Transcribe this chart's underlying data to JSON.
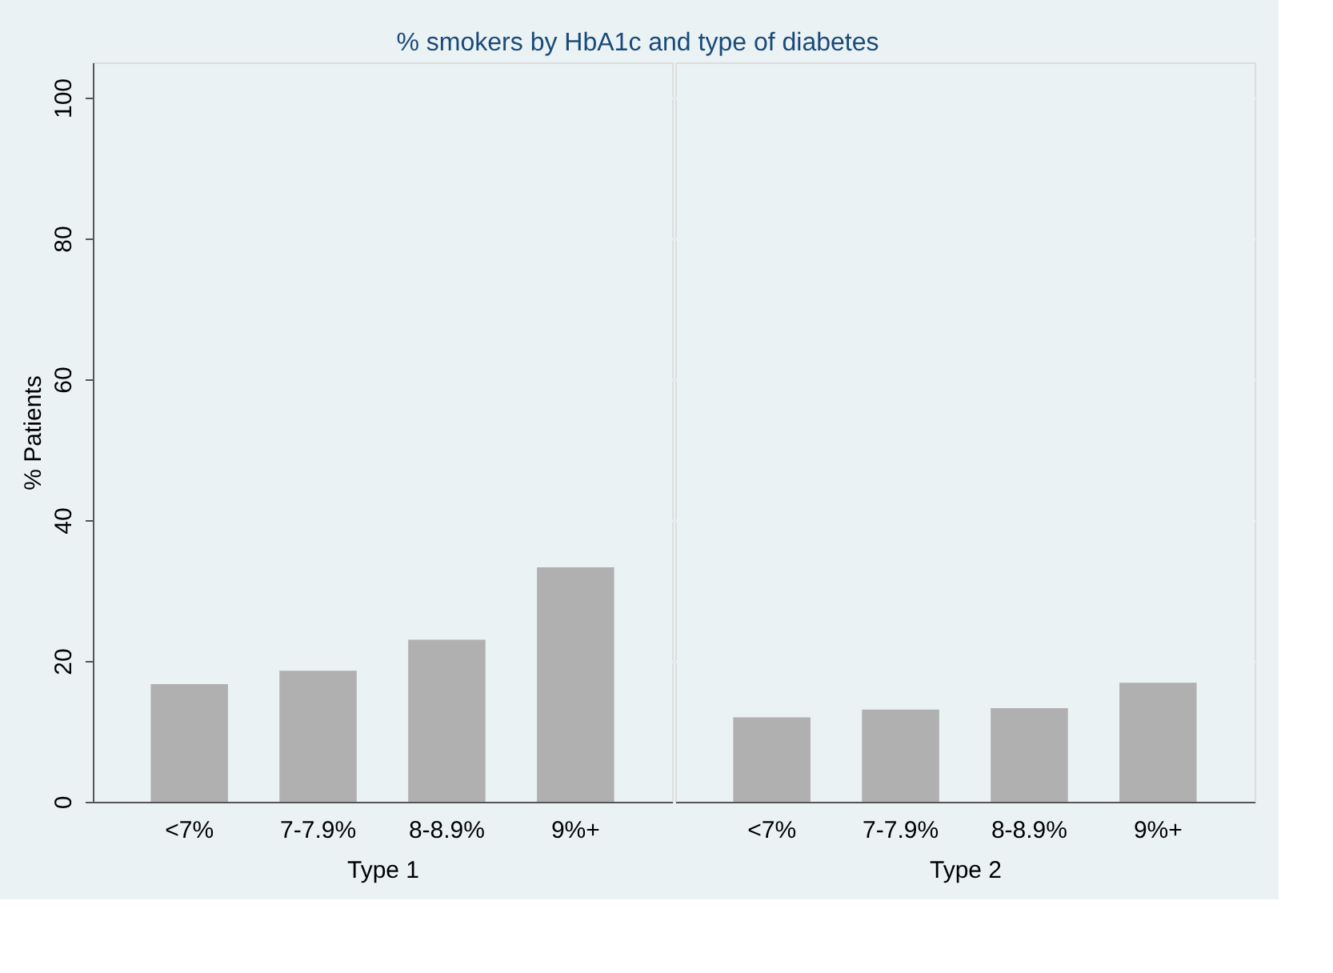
{
  "chart_data": [
    {
      "type": "bar",
      "title": "% smokers by HbA1c and type of diabetes",
      "xlabel": "Type 1",
      "ylabel": "% Patients",
      "categories": [
        "<7%",
        "7-7.9%",
        "8-8.9%",
        "9%+"
      ],
      "values": [
        16.7,
        18.6,
        23.0,
        33.3
      ],
      "color": "#b0b0b0",
      "ylim": [
        0,
        105
      ],
      "yticks": [
        0,
        20,
        40,
        60,
        80,
        100
      ],
      "grid": "y"
    },
    {
      "type": "bar",
      "xlabel": "Type 2",
      "categories": [
        "<7%",
        "7-7.9%",
        "8-8.9%",
        "9%+"
      ],
      "values": [
        12.0,
        13.1,
        13.3,
        16.9
      ],
      "color": "#b0b0b0",
      "ylim": [
        0,
        105
      ],
      "yticks": [
        0,
        20,
        40,
        60,
        80,
        100
      ],
      "grid": "y",
      "tick_labels": "x"
    }
  ]
}
